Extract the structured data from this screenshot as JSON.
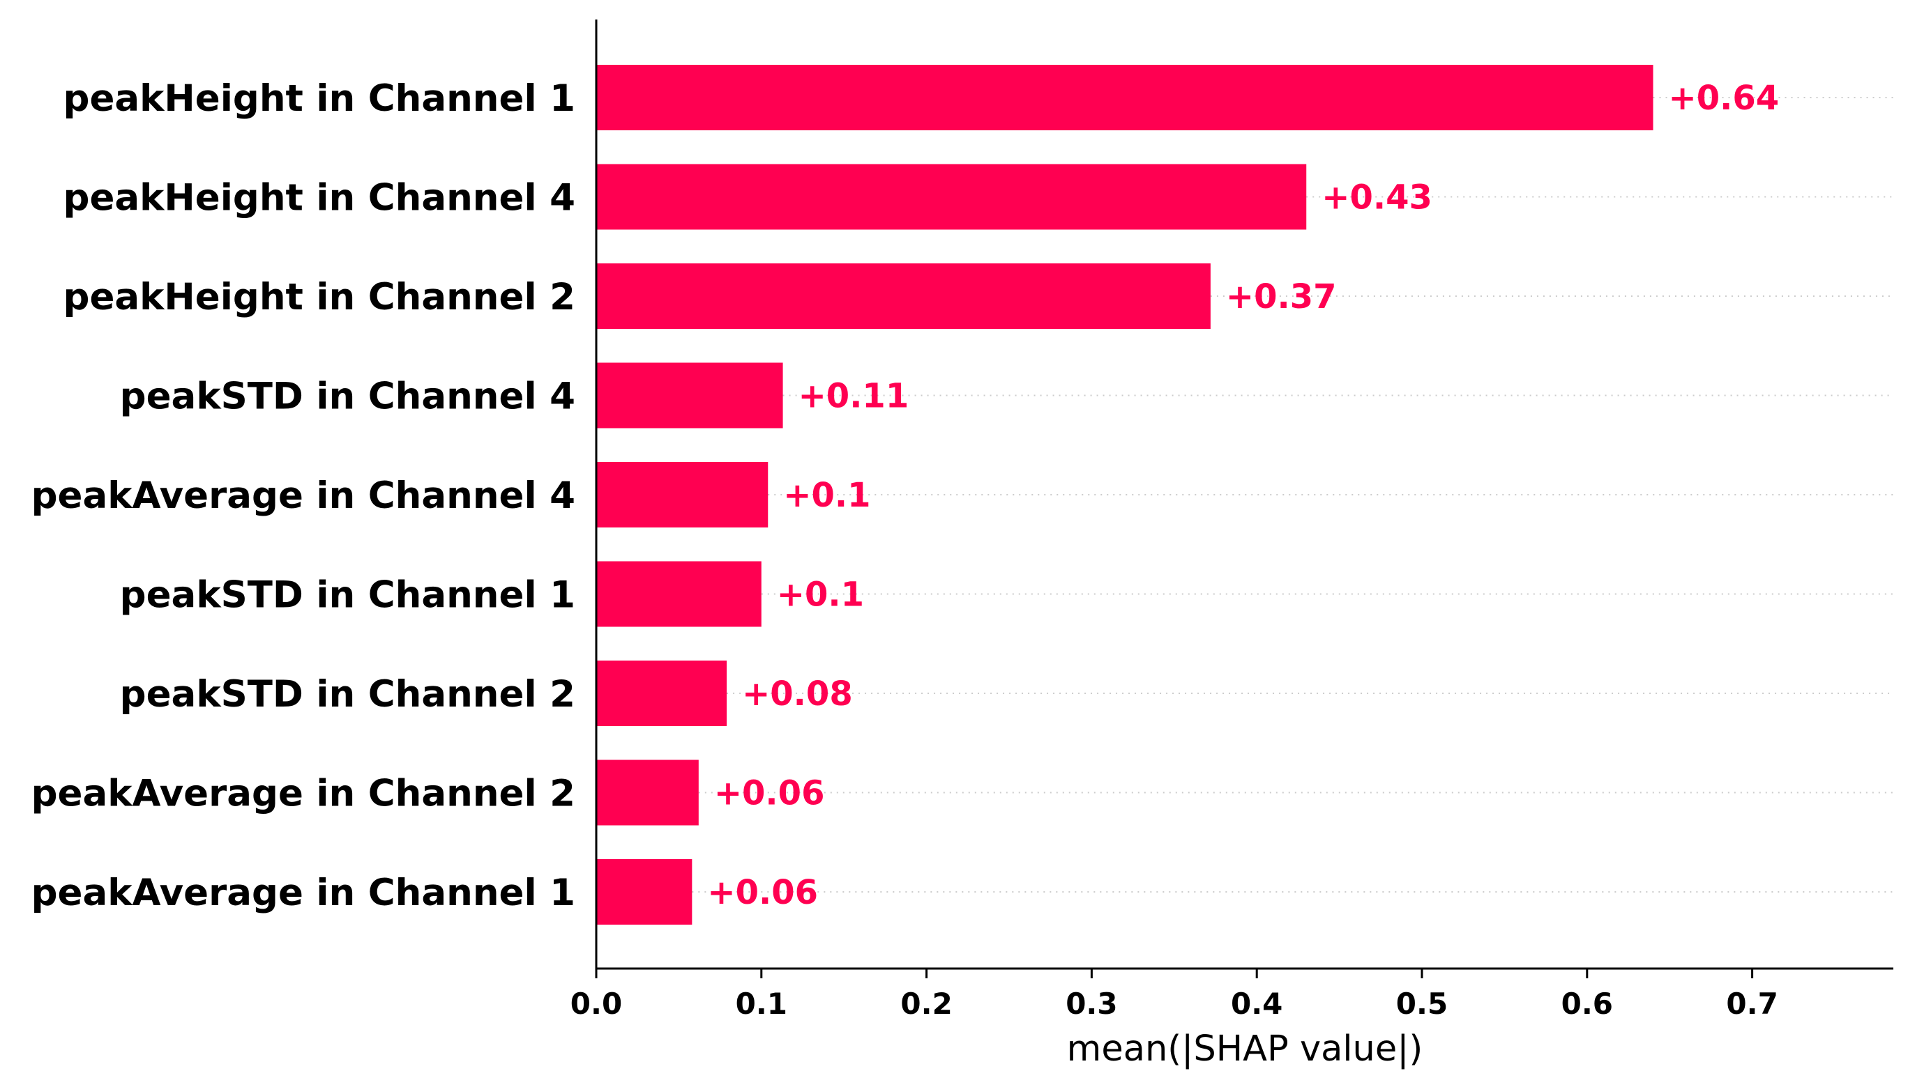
{
  "chart_data": {
    "type": "bar",
    "orientation": "horizontal",
    "categories": [
      "peakHeight in Channel 1",
      "peakHeight in Channel 4",
      "peakHeight in Channel 2",
      "peakSTD in Channel 4",
      "peakAverage in Channel 4",
      "peakSTD in Channel 1",
      "peakSTD in Channel 2",
      "peakAverage in Channel 2",
      "peakAverage in Channel 1"
    ],
    "values": [
      0.64,
      0.43,
      0.372,
      0.113,
      0.104,
      0.1,
      0.079,
      0.062,
      0.058
    ],
    "data_labels": [
      "+0.64",
      "+0.43",
      "+0.37",
      "+0.11",
      "+0.1",
      "+0.1",
      "+0.08",
      "+0.06",
      "+0.06"
    ],
    "xlabel": "mean(|SHAP value|)",
    "ylabel": "",
    "xlim": [
      0,
      0.7
    ],
    "xticks": [
      0.0,
      0.1,
      0.2,
      0.3,
      0.4,
      0.5,
      0.6,
      0.7
    ],
    "xtick_labels": [
      "0.0",
      "0.1",
      "0.2",
      "0.3",
      "0.4",
      "0.5",
      "0.6",
      "0.7"
    ],
    "grid": "dotted guide lines per bar",
    "colors": {
      "bar": "#ff0051",
      "guide": "#cccccc",
      "axis": "#000000"
    }
  }
}
